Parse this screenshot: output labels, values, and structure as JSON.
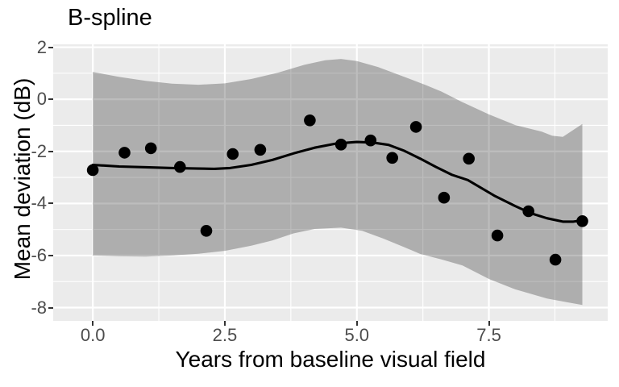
{
  "title": "B-spline",
  "chart_data": {
    "type": "scatter",
    "title": "B-spline",
    "xlabel": "Years from baseline visual field",
    "ylabel": "Mean deviation (dB)",
    "xlim": [
      -0.75,
      9.75
    ],
    "ylim": [
      -8.51,
      2.11
    ],
    "grid": true,
    "legend": false,
    "x_major_ticks": [
      0.0,
      2.5,
      5.0,
      7.5
    ],
    "x_tick_labels": [
      "0.0",
      "2.5",
      "5.0",
      "7.5"
    ],
    "x_minor_ticks": [
      1.25,
      3.75,
      6.25,
      8.75
    ],
    "y_major_ticks": [
      2,
      0,
      -2,
      -4,
      -6,
      -8
    ],
    "y_tick_labels": [
      "2",
      "0",
      "-2",
      "-4",
      "-6",
      "-8"
    ],
    "y_minor_ticks": [
      1,
      -1,
      -3,
      -5,
      -7
    ],
    "points": [
      [
        0.0,
        -2.72
      ],
      [
        0.6,
        -2.05
      ],
      [
        1.1,
        -1.88
      ],
      [
        1.65,
        -2.6
      ],
      [
        2.15,
        -5.05
      ],
      [
        2.65,
        -2.1
      ],
      [
        3.17,
        -1.94
      ],
      [
        4.11,
        -0.81
      ],
      [
        4.7,
        -1.74
      ],
      [
        5.26,
        -1.58
      ],
      [
        5.67,
        -2.25
      ],
      [
        6.12,
        -1.06
      ],
      [
        6.65,
        -3.78
      ],
      [
        7.12,
        -2.28
      ],
      [
        7.66,
        -5.23
      ],
      [
        8.25,
        -4.3
      ],
      [
        8.76,
        -6.16
      ],
      [
        9.27,
        -4.68
      ]
    ],
    "smooth_line": [
      [
        0.0,
        -2.52
      ],
      [
        0.5,
        -2.58
      ],
      [
        1.0,
        -2.61
      ],
      [
        1.5,
        -2.64
      ],
      [
        2.0,
        -2.66
      ],
      [
        2.3,
        -2.67
      ],
      [
        2.6,
        -2.64
      ],
      [
        3.0,
        -2.52
      ],
      [
        3.4,
        -2.33
      ],
      [
        3.8,
        -2.08
      ],
      [
        4.2,
        -1.86
      ],
      [
        4.6,
        -1.7
      ],
      [
        5.0,
        -1.64
      ],
      [
        5.3,
        -1.66
      ],
      [
        5.6,
        -1.75
      ],
      [
        5.9,
        -1.98
      ],
      [
        6.2,
        -2.28
      ],
      [
        6.5,
        -2.6
      ],
      [
        6.8,
        -2.9
      ],
      [
        7.1,
        -3.1
      ],
      [
        7.6,
        -3.7
      ],
      [
        8.0,
        -4.1
      ],
      [
        8.3,
        -4.38
      ],
      [
        8.6,
        -4.57
      ],
      [
        8.9,
        -4.7
      ],
      [
        9.1,
        -4.7
      ],
      [
        9.27,
        -4.65
      ]
    ],
    "ribbon_upper": [
      [
        0.0,
        1.05
      ],
      [
        0.5,
        0.86
      ],
      [
        1.0,
        0.71
      ],
      [
        1.5,
        0.6
      ],
      [
        2.0,
        0.56
      ],
      [
        2.5,
        0.61
      ],
      [
        3.0,
        0.78
      ],
      [
        3.5,
        1.02
      ],
      [
        4.0,
        1.32
      ],
      [
        4.4,
        1.5
      ],
      [
        4.7,
        1.55
      ],
      [
        5.0,
        1.47
      ],
      [
        5.4,
        1.24
      ],
      [
        5.9,
        0.86
      ],
      [
        6.3,
        0.55
      ],
      [
        6.6,
        0.3
      ],
      [
        7.0,
        -0.11
      ],
      [
        7.5,
        -0.58
      ],
      [
        8.0,
        -0.99
      ],
      [
        8.5,
        -1.24
      ],
      [
        8.7,
        -1.4
      ],
      [
        8.9,
        -1.44
      ],
      [
        9.27,
        -0.95
      ]
    ],
    "ribbon_lower": [
      [
        0.0,
        -6.0
      ],
      [
        0.5,
        -6.03
      ],
      [
        1.0,
        -6.04
      ],
      [
        1.5,
        -6.0
      ],
      [
        2.0,
        -5.93
      ],
      [
        2.5,
        -5.82
      ],
      [
        3.0,
        -5.62
      ],
      [
        3.4,
        -5.42
      ],
      [
        3.8,
        -5.15
      ],
      [
        4.2,
        -4.98
      ],
      [
        4.7,
        -4.93
      ],
      [
        5.1,
        -5.05
      ],
      [
        5.5,
        -5.35
      ],
      [
        5.9,
        -5.68
      ],
      [
        6.2,
        -5.94
      ],
      [
        6.6,
        -6.15
      ],
      [
        7.0,
        -6.38
      ],
      [
        7.5,
        -6.9
      ],
      [
        8.0,
        -7.3
      ],
      [
        8.6,
        -7.65
      ],
      [
        9.0,
        -7.8
      ],
      [
        9.27,
        -7.9
      ]
    ],
    "colors": {
      "panel_bg": "#EBEBEB",
      "gridline": "#FFFFFF",
      "ribbon_fill": "#000000",
      "ribbon_opacity": 0.26,
      "line": "#000000",
      "point": "#000000",
      "tick_label": "#4D4D4D",
      "tick_mark": "#333333",
      "title_text": "#000000"
    }
  }
}
